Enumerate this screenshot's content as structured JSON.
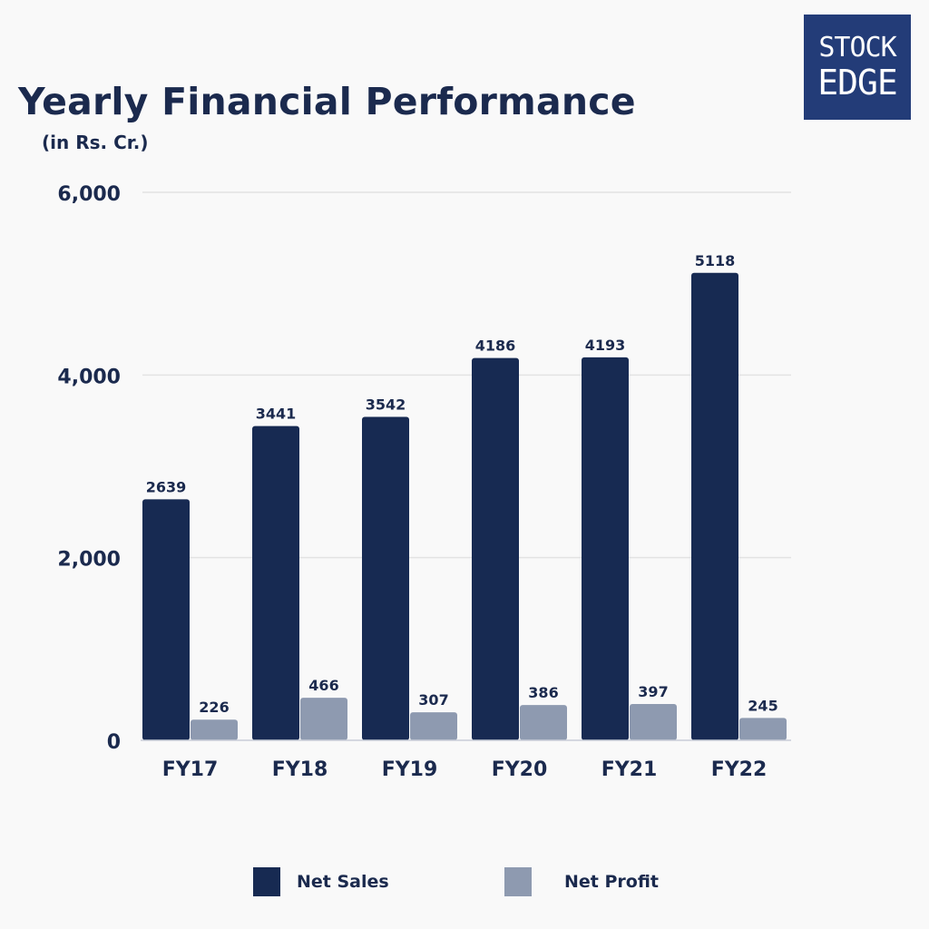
{
  "header": {
    "title": "Yearly Financial Performance",
    "subtitle": "(in Rs. Cr.)"
  },
  "logo": {
    "line1": "STOCK",
    "line2": "EDGE",
    "color": "#233c78"
  },
  "colors": {
    "net_sales": "#172a52",
    "net_profit": "#8e9ab0",
    "grid": "#e3e3e3",
    "text": "#1b2a4e"
  },
  "chart_data": {
    "type": "bar",
    "categories": [
      "FY17",
      "FY18",
      "FY19",
      "FY20",
      "FY21",
      "FY22"
    ],
    "series": [
      {
        "name": "Net Sales",
        "values": [
          2639,
          3441,
          3542,
          4186,
          4193,
          5118
        ]
      },
      {
        "name": "Net Profit",
        "values": [
          226,
          466,
          307,
          386,
          397,
          245
        ]
      }
    ],
    "title": "Yearly Financial Performance",
    "subtitle": "(in Rs. Cr.)",
    "ylim": [
      0,
      6000
    ],
    "yticks": [
      0,
      2000,
      4000,
      6000
    ],
    "ytick_labels": [
      "0",
      "2,000",
      "4,000",
      "6,000"
    ],
    "grid": true,
    "legend_position": "bottom"
  }
}
